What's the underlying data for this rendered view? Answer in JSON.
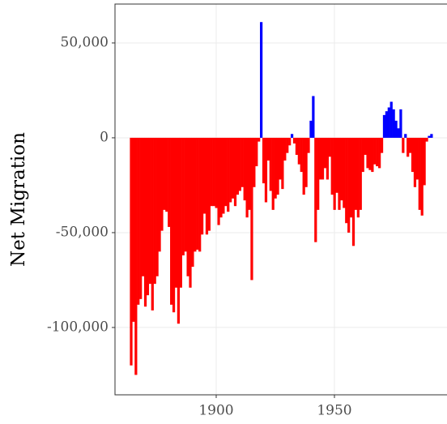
{
  "chart_data": {
    "type": "bar",
    "y_label": "Net Migration",
    "x": [
      1864,
      1865,
      1866,
      1867,
      1868,
      1869,
      1870,
      1871,
      1872,
      1873,
      1874,
      1875,
      1876,
      1877,
      1878,
      1879,
      1880,
      1881,
      1882,
      1883,
      1884,
      1885,
      1886,
      1887,
      1888,
      1889,
      1890,
      1891,
      1892,
      1893,
      1894,
      1895,
      1896,
      1897,
      1898,
      1899,
      1900,
      1901,
      1902,
      1903,
      1904,
      1905,
      1906,
      1907,
      1908,
      1909,
      1910,
      1911,
      1912,
      1913,
      1914,
      1915,
      1916,
      1917,
      1918,
      1919,
      1920,
      1921,
      1922,
      1923,
      1924,
      1925,
      1926,
      1927,
      1928,
      1929,
      1930,
      1931,
      1932,
      1933,
      1934,
      1935,
      1936,
      1937,
      1938,
      1939,
      1940,
      1941,
      1942,
      1943,
      1944,
      1945,
      1946,
      1947,
      1948,
      1949,
      1950,
      1951,
      1952,
      1953,
      1954,
      1955,
      1956,
      1957,
      1958,
      1959,
      1960,
      1961,
      1962,
      1963,
      1964,
      1965,
      1966,
      1967,
      1968,
      1969,
      1970,
      1971,
      1972,
      1973,
      1974,
      1975,
      1976,
      1977,
      1978,
      1979,
      1980,
      1981,
      1982,
      1983,
      1984,
      1985,
      1986,
      1987,
      1988,
      1989,
      1990,
      1991
    ],
    "values": [
      -120000,
      -97000,
      -125000,
      -88000,
      -85000,
      -73000,
      -89000,
      -83000,
      -77000,
      -91000,
      -77000,
      -73000,
      -60000,
      -49000,
      -38000,
      -39000,
      -47000,
      -88000,
      -92000,
      -79000,
      -98000,
      -79000,
      -62000,
      -60000,
      -73000,
      -79000,
      -68000,
      -60000,
      -59000,
      -60000,
      -51000,
      -40000,
      -51000,
      -49000,
      -36000,
      -36000,
      -37000,
      -46000,
      -42000,
      -40000,
      -36000,
      -39000,
      -34000,
      -32000,
      -36000,
      -30000,
      -28000,
      -26000,
      -33000,
      -42000,
      -38000,
      -75000,
      -26000,
      -15000,
      -2000,
      61000,
      -24000,
      -34000,
      -12000,
      -28000,
      -38000,
      -32000,
      -30000,
      -22000,
      -27000,
      -12000,
      -8000,
      -4000,
      2000,
      -3000,
      -9000,
      -14000,
      -18000,
      -30000,
      -26000,
      -8000,
      9000,
      22000,
      -55000,
      -38000,
      -22000,
      -22000,
      -16000,
      -22000,
      -10000,
      -30000,
      -38000,
      -29000,
      -38000,
      -33000,
      -37000,
      -45000,
      -50000,
      -42000,
      -57000,
      -38000,
      -42000,
      -38000,
      -18000,
      -9000,
      -16000,
      -17000,
      -18000,
      -14000,
      -15000,
      -16000,
      -8000,
      12000,
      14000,
      16000,
      19000,
      15000,
      9000,
      5000,
      15000,
      -8000,
      2000,
      -10000,
      -8000,
      -18000,
      -26000,
      -22000,
      -38000,
      -41000,
      -25000,
      -2000,
      1000,
      2000
    ],
    "positive_color": "#0000ff",
    "negative_color": "#ff0000",
    "xlim": [
      1857.2,
      1997.6
    ],
    "xticks": [
      1900,
      1950
    ],
    "ylim": [
      -135500,
      70500
    ],
    "yticks": [
      {
        "value": -100000,
        "label": "-100,000"
      },
      {
        "value": -50000,
        "label": "-50,000"
      },
      {
        "value": 0,
        "label": "0"
      },
      {
        "value": 50000,
        "label": "50,000"
      }
    ],
    "grid": true
  }
}
